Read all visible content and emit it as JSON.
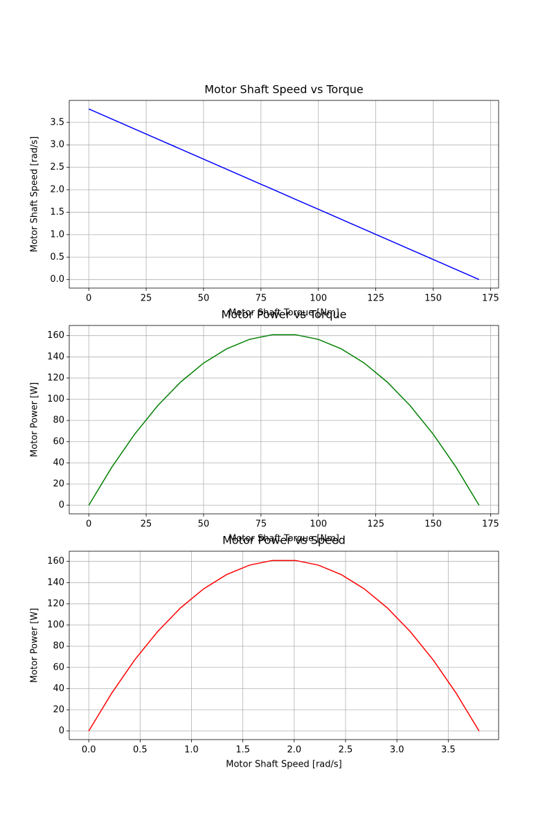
{
  "chart_data": [
    {
      "type": "line",
      "title": "Motor Shaft Speed vs Torque",
      "xlabel": "Motor Shaft Torque [Nm]",
      "ylabel": "Motor Shaft Speed [rad/s]",
      "x": [
        0,
        10,
        20,
        30,
        40,
        50,
        60,
        70,
        80,
        90,
        100,
        110,
        120,
        130,
        140,
        150,
        160,
        170
      ],
      "values": [
        3.8,
        3.576,
        3.353,
        3.129,
        2.906,
        2.682,
        2.459,
        2.235,
        2.012,
        1.788,
        1.565,
        1.341,
        1.118,
        0.894,
        0.671,
        0.447,
        0.224,
        0
      ],
      "color": "#0000ff",
      "xlim": [
        -8.5,
        178.5
      ],
      "ylim": [
        -0.19,
        3.99
      ],
      "xticks": [
        0,
        25,
        50,
        75,
        100,
        125,
        150,
        175
      ],
      "yticks": [
        {
          "value": 0,
          "label": "0.0"
        },
        0.5,
        {
          "value": 1,
          "label": "1.0"
        },
        1.5,
        {
          "value": 2,
          "label": "2.0"
        },
        2.5,
        {
          "value": 3,
          "label": "3.0"
        },
        3.5
      ],
      "grid": true
    },
    {
      "type": "line",
      "title": "Motor Power vs Torque",
      "xlabel": "Motor Shaft Torque [Nm]",
      "ylabel": "Motor Power [W]",
      "x": [
        0,
        10,
        20,
        30,
        40,
        50,
        60,
        70,
        80,
        90,
        100,
        110,
        120,
        130,
        140,
        150,
        160,
        170
      ],
      "values": [
        0,
        35.8,
        67.1,
        93.9,
        116.2,
        134.1,
        147.5,
        156.5,
        160.9,
        160.9,
        156.5,
        147.5,
        134.1,
        116.2,
        93.9,
        67.1,
        35.8,
        0
      ],
      "color": "#008000",
      "xlim": [
        -8.5,
        178.5
      ],
      "ylim": [
        -8.1,
        169.6
      ],
      "xticks": [
        0,
        25,
        50,
        75,
        100,
        125,
        150,
        175
      ],
      "yticks": [
        0,
        20,
        40,
        60,
        80,
        100,
        120,
        140,
        160
      ],
      "grid": true
    },
    {
      "type": "line",
      "title": "Motor Power vs Speed",
      "xlabel": "Motor Shaft Speed [rad/s]",
      "ylabel": "Motor Power [W]",
      "x": [
        0,
        0.224,
        0.447,
        0.671,
        0.894,
        1.118,
        1.341,
        1.565,
        1.788,
        2.012,
        2.235,
        2.459,
        2.682,
        2.906,
        3.129,
        3.353,
        3.576,
        3.8
      ],
      "values": [
        0,
        35.8,
        67.1,
        93.9,
        116.2,
        134.1,
        147.5,
        156.5,
        160.9,
        160.9,
        156.5,
        147.5,
        134.1,
        116.2,
        93.9,
        67.1,
        35.8,
        0
      ],
      "color": "#ff0000",
      "xlim": [
        -0.19,
        3.99
      ],
      "ylim": [
        -8.1,
        169.6
      ],
      "xticks": [
        {
          "value": 0,
          "label": "0.0"
        },
        0.5,
        {
          "value": 1,
          "label": "1.0"
        },
        1.5,
        {
          "value": 2,
          "label": "2.0"
        },
        2.5,
        {
          "value": 3,
          "label": "3.0"
        },
        3.5
      ],
      "yticks": [
        0,
        20,
        40,
        60,
        80,
        100,
        120,
        140,
        160
      ],
      "grid": true
    }
  ]
}
